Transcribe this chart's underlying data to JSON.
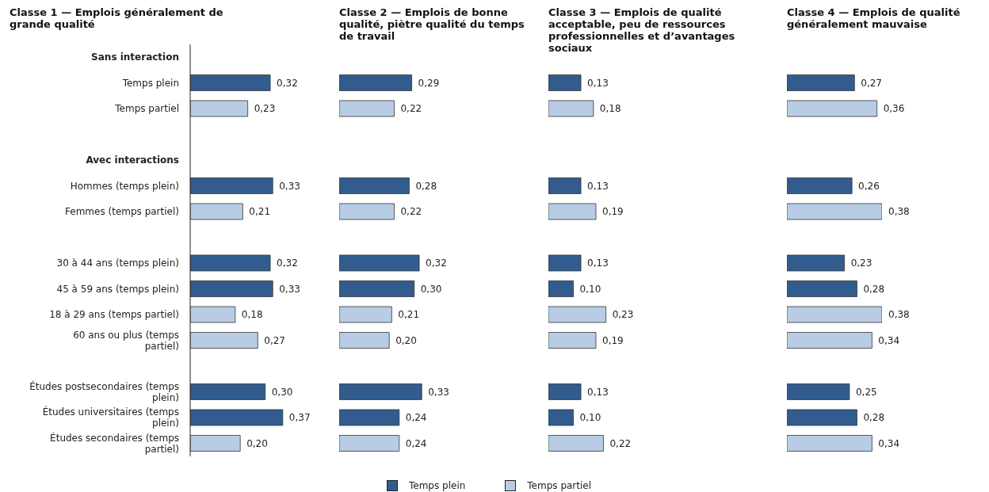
{
  "chart_data": [
    {
      "type": "bar",
      "orientation": "horizontal",
      "title": "Classe 1 — Emplois généralement de grande qualité",
      "categories": [
        "Sans interaction",
        "Temps plein",
        "Temps partiel",
        null,
        "Avec interactions",
        "Hommes (temps plein)",
        "Femmes (temps partiel)",
        null,
        "30 à 44 ans (temps plein)",
        "45 à 59 ans (temps plein)",
        "18 à 29 ans (temps partiel)",
        "60 ans ou plus (temps partiel)",
        null,
        "Études postsecondaires (temps plein)",
        "Études universitaires (temps plein)",
        "Études secondaires (temps partiel)"
      ],
      "tick_labels": "y",
      "legend": "bottom",
      "series": [
        {
          "name": "Temps plein",
          "color": "#335c8e",
          "values": [
            null,
            0.32,
            null,
            null,
            null,
            0.33,
            null,
            null,
            0.32,
            0.33,
            null,
            null,
            null,
            0.3,
            0.37,
            null
          ],
          "value_labels": [
            null,
            "0,32",
            null,
            null,
            null,
            "0,33",
            null,
            null,
            "0,32",
            "0,33",
            null,
            null,
            null,
            "0,30",
            "0,37",
            null
          ]
        },
        {
          "name": "Temps partiel",
          "color": "#b8cce4",
          "values": [
            null,
            null,
            0.23,
            null,
            null,
            null,
            0.21,
            null,
            null,
            null,
            0.18,
            0.27,
            null,
            null,
            null,
            0.2
          ],
          "value_labels": [
            null,
            null,
            "0,23",
            null,
            null,
            null,
            "0,21",
            null,
            null,
            null,
            "0,18",
            "0,27",
            null,
            null,
            null,
            "0,20"
          ]
        }
      ]
    },
    {
      "type": "bar",
      "orientation": "horizontal",
      "title": "Classe 2 — Emplois de bonne qualité, piètre qualité du temps de travail",
      "categories": [
        null,
        null,
        null,
        null,
        null,
        null,
        null,
        null,
        null,
        null,
        null,
        null,
        null,
        null,
        null,
        null
      ],
      "tick_labels": false,
      "series": [
        {
          "color": "#335c8e",
          "values": [
            null,
            0.29,
            null,
            null,
            null,
            0.28,
            null,
            null,
            0.32,
            0.3,
            null,
            null,
            null,
            0.33,
            0.24,
            null
          ],
          "value_labels": [
            null,
            "0,29",
            null,
            null,
            null,
            "0,28",
            null,
            null,
            "0,32",
            "0,30",
            null,
            null,
            null,
            "0,33",
            "0,24",
            null
          ]
        },
        {
          "color": "#b8cce4",
          "values": [
            null,
            null,
            0.22,
            null,
            null,
            null,
            0.22,
            null,
            null,
            null,
            0.21,
            0.2,
            null,
            null,
            null,
            0.24
          ],
          "value_labels": [
            null,
            null,
            "0,22",
            null,
            null,
            null,
            "0,22",
            null,
            null,
            null,
            "0,21",
            "0,20",
            null,
            null,
            null,
            "0,24"
          ]
        }
      ]
    },
    {
      "type": "bar",
      "orientation": "horizontal",
      "title": "Classe 3 — Emplois de qualité acceptable, peu de ressources professionnelles et d’avantages sociaux",
      "categories": [
        null,
        null,
        null,
        null,
        null,
        null,
        null,
        null,
        null,
        null,
        null,
        null,
        null,
        null,
        null,
        null
      ],
      "tick_labels": false,
      "series": [
        {
          "color": "#335c8e",
          "values": [
            null,
            0.13,
            null,
            null,
            null,
            0.13,
            null,
            null,
            0.13,
            0.1,
            null,
            null,
            null,
            0.13,
            0.1,
            null
          ],
          "value_labels": [
            null,
            "0,13",
            null,
            null,
            null,
            "0,13",
            null,
            null,
            "0,13",
            "0,10",
            null,
            null,
            null,
            "0,13",
            "0,10",
            null
          ]
        },
        {
          "color": "#b8cce4",
          "values": [
            null,
            null,
            0.18,
            null,
            null,
            null,
            0.19,
            null,
            null,
            null,
            0.23,
            0.19,
            null,
            null,
            null,
            0.22
          ],
          "value_labels": [
            null,
            null,
            "0,18",
            null,
            null,
            null,
            "0,19",
            null,
            null,
            null,
            "0,23",
            "0,19",
            null,
            null,
            null,
            "0,22"
          ]
        }
      ]
    },
    {
      "type": "bar",
      "orientation": "horizontal",
      "title": "Classe 4 — Emplois de qualité généralement mauvaise",
      "categories": [
        null,
        null,
        null,
        null,
        null,
        null,
        null,
        null,
        null,
        null,
        null,
        null,
        null,
        null,
        null,
        null
      ],
      "tick_labels": false,
      "series": [
        {
          "color": "#335c8e",
          "values": [
            null,
            0.27,
            null,
            null,
            null,
            0.26,
            null,
            null,
            0.23,
            0.28,
            null,
            null,
            null,
            0.25,
            0.28,
            null
          ],
          "value_labels": [
            null,
            "0,27",
            null,
            null,
            null,
            "0,26",
            null,
            null,
            "0,23",
            "0,28",
            null,
            null,
            null,
            "0,25",
            "0,28",
            null
          ]
        },
        {
          "color": "#b8cce4",
          "values": [
            null,
            null,
            0.36,
            null,
            null,
            null,
            0.38,
            null,
            null,
            null,
            0.38,
            0.34,
            null,
            null,
            null,
            0.34
          ],
          "value_labels": [
            null,
            null,
            "0,36",
            null,
            null,
            null,
            "0,38",
            null,
            null,
            null,
            "0,38",
            "0,34",
            null,
            null,
            null,
            "0,34"
          ]
        }
      ]
    }
  ]
}
